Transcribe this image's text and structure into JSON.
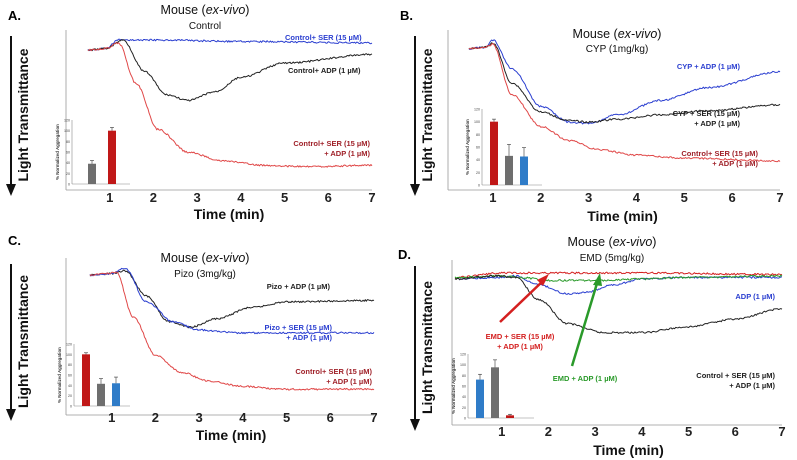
{
  "figure": {
    "panels": [
      {
        "letter": "A.",
        "title_main": "Mouse (",
        "title_italic": "ex-vivo",
        "title_close": ")",
        "subtitle": "Control",
        "ylabel": "Light Transmittance",
        "xlabel": "Time (min)",
        "labels": [
          {
            "lines": [
              "Control+ SER (15 µM)"
            ],
            "color": "#2b3fd0"
          },
          {
            "lines": [
              "Control+ ADP (1 µM)"
            ],
            "color": "#222222"
          },
          {
            "lines": [
              "Control+ SER (15 µM)",
              "+ ADP (1 µM)"
            ],
            "color": "#a0222a"
          }
        ],
        "inset_ylabel": "% Normalized Aggregation"
      },
      {
        "letter": "B.",
        "title_main": "Mouse (",
        "title_italic": "ex-vivo",
        "title_close": ")",
        "subtitle": "CYP (1mg/kg)",
        "ylabel": "Light Transmittance",
        "xlabel": "Time (min)",
        "labels": [
          {
            "lines": [
              "CYP + ADP (1 µM)"
            ],
            "color": "#2b3fd0"
          },
          {
            "lines": [
              "CYP + SER (15 µM)",
              "+ ADP (1 µM)"
            ],
            "color": "#222222"
          },
          {
            "lines": [
              "Control+ SER (15 µM)",
              "+ ADP (1 µM)"
            ],
            "color": "#a0222a"
          }
        ],
        "inset_ylabel": "% Normalized Aggregation"
      },
      {
        "letter": "C.",
        "title_main": "Mouse (",
        "title_italic": "ex-vivo",
        "title_close": ")",
        "subtitle": "Pizo (3mg/kg)",
        "ylabel": "Light Transmittance",
        "xlabel": "Time (min)",
        "labels": [
          {
            "lines": [
              "Pizo + ADP (1 µM)"
            ],
            "color": "#222222"
          },
          {
            "lines": [
              "Pizo + SER (15 µM)",
              "+ ADP (1 µM)"
            ],
            "color": "#2b3fd0"
          },
          {
            "lines": [
              "Control+ SER (15 µM)",
              "+ ADP (1 µM)"
            ],
            "color": "#a0222a"
          }
        ],
        "inset_ylabel": "% Normalized Aggregation"
      },
      {
        "letter": "D.",
        "title_main": "Mouse (",
        "title_italic": "ex-vivo",
        "title_close": ")",
        "subtitle": "EMD (5mg/kg)",
        "ylabel": "Light Transmittance",
        "xlabel": "Time (min)",
        "labels": [
          {
            "lines": [
              "ADP (1 µM)"
            ],
            "color": "#2b3fd0"
          },
          {
            "lines": [
              "EMD + SER (15 µM)",
              "+ ADP (1 µM)"
            ],
            "color": "#d42020"
          },
          {
            "lines": [
              "EMD + ADP (1 µM)"
            ],
            "color": "#2a9a2a"
          },
          {
            "lines": [
              "Control + SER (15 µM)",
              "+ ADP (1 µM)"
            ],
            "color": "#222222"
          }
        ],
        "inset_ylabel": "% Normalized Aggregation"
      }
    ]
  },
  "chart_data": [
    {
      "type": "line",
      "panel": "A",
      "title": "Mouse (ex-vivo) Control",
      "xlabel": "Time (min)",
      "ylabel": "Light Transmittance",
      "xlim": [
        0,
        7
      ],
      "x_ticks": [
        "1",
        "2",
        "3",
        "4",
        "5",
        "6",
        "7"
      ],
      "series": [
        {
          "name": "Control+ SER (15 µM)",
          "color": "#2b3fd0",
          "x": [
            0.5,
            0.9,
            1.2,
            2,
            4,
            7
          ],
          "y": [
            0.07,
            0.06,
            0.0,
            0.0,
            0.01,
            0.02
          ]
        },
        {
          "name": "Control+ ADP (1 µM)",
          "color": "#222222",
          "x": [
            0.5,
            0.9,
            1.3,
            1.8,
            2.3,
            2.8,
            3.4,
            4,
            5,
            7
          ],
          "y": [
            0.07,
            0.06,
            0.0,
            0.22,
            0.38,
            0.42,
            0.36,
            0.26,
            0.16,
            0.1
          ]
        },
        {
          "name": "Control+ SER (15 µM) + ADP (1 µM)",
          "color": "#e04848",
          "x": [
            0.5,
            0.9,
            1.2,
            1.6,
            2.1,
            2.8,
            3.6,
            4.5,
            5.5,
            7
          ],
          "y": [
            0.07,
            0.06,
            0.02,
            0.3,
            0.62,
            0.78,
            0.84,
            0.87,
            0.88,
            0.87
          ]
        }
      ],
      "inset": {
        "type": "bar",
        "ylabel": "% Normalized Aggregation",
        "values": [
          38,
          100
        ],
        "errors": [
          6,
          6
        ],
        "colors": [
          "#6e6e6e",
          "#c01818"
        ],
        "ylim": [
          0,
          120
        ],
        "ticks": [
          "0",
          "20",
          "40",
          "60",
          "80",
          "100",
          "120"
        ]
      }
    },
    {
      "type": "line",
      "panel": "B",
      "title": "Mouse (ex-vivo) CYP (1mg/kg)",
      "xlabel": "Time (min)",
      "ylabel": "Light Transmittance",
      "xlim": [
        0,
        7
      ],
      "x_ticks": [
        "1",
        "2",
        "3",
        "4",
        "5",
        "6",
        "7"
      ],
      "series": [
        {
          "name": "CYP + ADP (1 µM)",
          "color": "#2b3fd0",
          "x": [
            0.5,
            0.85,
            1.0,
            1.4,
            2,
            2.6,
            3.0,
            3.6,
            4.5,
            5.5,
            7
          ],
          "y": [
            0.06,
            0.05,
            0.0,
            0.2,
            0.46,
            0.57,
            0.58,
            0.52,
            0.42,
            0.33,
            0.22
          ]
        },
        {
          "name": "CYP + SER (15 µM) + ADP (1 µM)",
          "color": "#222222",
          "x": [
            0.5,
            0.85,
            1.0,
            1.4,
            2,
            2.6,
            3.0,
            3.6,
            4.5,
            5.5,
            7
          ],
          "y": [
            0.06,
            0.05,
            0.02,
            0.3,
            0.5,
            0.56,
            0.57,
            0.55,
            0.52,
            0.49,
            0.45
          ]
        },
        {
          "name": "Control+ SER (15 µM) + ADP (1 µM)",
          "color": "#e04848",
          "x": [
            0.5,
            0.85,
            1.0,
            1.4,
            2,
            2.6,
            3.2,
            4,
            5,
            7
          ],
          "y": [
            0.06,
            0.05,
            0.03,
            0.38,
            0.6,
            0.7,
            0.76,
            0.8,
            0.82,
            0.84
          ]
        }
      ],
      "inset": {
        "type": "bar",
        "ylabel": "% Normalized Aggregation",
        "values": [
          100,
          46,
          45
        ],
        "errors": [
          4,
          18,
          14
        ],
        "colors": [
          "#c01818",
          "#6e6e6e",
          "#2f7cc8"
        ],
        "ylim": [
          0,
          120
        ],
        "ticks": [
          "0",
          "20",
          "40",
          "60",
          "80",
          "100",
          "120"
        ]
      }
    },
    {
      "type": "line",
      "panel": "C",
      "title": "Mouse (ex-vivo) Pizo (3mg/kg)",
      "xlabel": "Time (min)",
      "ylabel": "Light Transmittance",
      "xlim": [
        0,
        7
      ],
      "x_ticks": [
        "1",
        "2",
        "3",
        "4",
        "5",
        "6",
        "7"
      ],
      "series": [
        {
          "name": "Pizo + ADP (1 µM)",
          "color": "#222222",
          "x": [
            0.5,
            1.0,
            1.3,
            1.8,
            2.3,
            2.8,
            3.4,
            4.2,
            5,
            7
          ],
          "y": [
            0.05,
            0.04,
            0.02,
            0.2,
            0.38,
            0.42,
            0.36,
            0.28,
            0.24,
            0.23
          ]
        },
        {
          "name": "Pizo + SER (15 µM) + ADP (1 µM)",
          "color": "#2b3fd0",
          "x": [
            0.5,
            1.0,
            1.3,
            1.8,
            2.4,
            3.0,
            4,
            5,
            7
          ],
          "y": [
            0.05,
            0.04,
            0.0,
            0.24,
            0.38,
            0.44,
            0.46,
            0.46,
            0.46
          ]
        },
        {
          "name": "Control+ SER (15 µM) + ADP (1 µM)",
          "color": "#e04848",
          "x": [
            0.5,
            0.9,
            1.1,
            1.5,
            2,
            2.6,
            3.2,
            4,
            5,
            7
          ],
          "y": [
            0.05,
            0.04,
            0.03,
            0.35,
            0.62,
            0.74,
            0.8,
            0.84,
            0.86,
            0.86
          ]
        }
      ],
      "inset": {
        "type": "bar",
        "ylabel": "% Normalized Aggregation",
        "values": [
          100,
          43,
          44
        ],
        "errors": [
          3,
          10,
          12
        ],
        "colors": [
          "#c01818",
          "#6e6e6e",
          "#2f7cc8"
        ],
        "ylim": [
          0,
          120
        ],
        "ticks": [
          "0",
          "20",
          "40",
          "60",
          "80",
          "100",
          "120"
        ]
      }
    },
    {
      "type": "line",
      "panel": "D",
      "title": "Mouse (ex-vivo) EMD (5mg/kg)",
      "xlabel": "Time (min)",
      "ylabel": "Light Transmittance",
      "xlim": [
        0,
        7
      ],
      "x_ticks": [
        "1",
        "2",
        "3",
        "4",
        "5",
        "6",
        "7"
      ],
      "series": [
        {
          "name": "ADP (1 µM)",
          "color": "#2b3fd0",
          "x": [
            0.0,
            0.9,
            1.3,
            1.8,
            2.4,
            2.8,
            3.4,
            4,
            5,
            7
          ],
          "y": [
            0.06,
            0.05,
            0.04,
            0.1,
            0.16,
            0.15,
            0.1,
            0.06,
            0.05,
            0.05
          ]
        },
        {
          "name": "EMD + SER (15 µM) + ADP (1 µM)",
          "color": "#d42020",
          "x": [
            0.0,
            1.0,
            2,
            4,
            7
          ],
          "y": [
            0.05,
            0.02,
            0.02,
            0.02,
            0.03
          ]
        },
        {
          "name": "EMD + ADP (1 µM)",
          "color": "#2a9a2a",
          "x": [
            0.0,
            1.0,
            1.4,
            2,
            3,
            4,
            5,
            7
          ],
          "y": [
            0.05,
            0.04,
            0.05,
            0.07,
            0.07,
            0.06,
            0.05,
            0.04
          ]
        },
        {
          "name": "Control + SER (15 µM) + ADP (1 µM)",
          "color": "#222222",
          "x": [
            0.0,
            0.9,
            1.3,
            1.8,
            2.4,
            3.2,
            4,
            5,
            6,
            7
          ],
          "y": [
            0.06,
            0.04,
            0.05,
            0.2,
            0.36,
            0.42,
            0.42,
            0.38,
            0.33,
            0.26
          ]
        }
      ],
      "inset": {
        "type": "bar",
        "ylabel": "% Normalized Aggregation",
        "values": [
          72,
          95,
          5
        ],
        "errors": [
          10,
          14,
          2
        ],
        "colors": [
          "#2f7cc8",
          "#6e6e6e",
          "#c01818"
        ],
        "ylim": [
          0,
          120
        ],
        "ticks": [
          "0",
          "20",
          "40",
          "60",
          "80",
          "100",
          "120"
        ]
      }
    }
  ]
}
